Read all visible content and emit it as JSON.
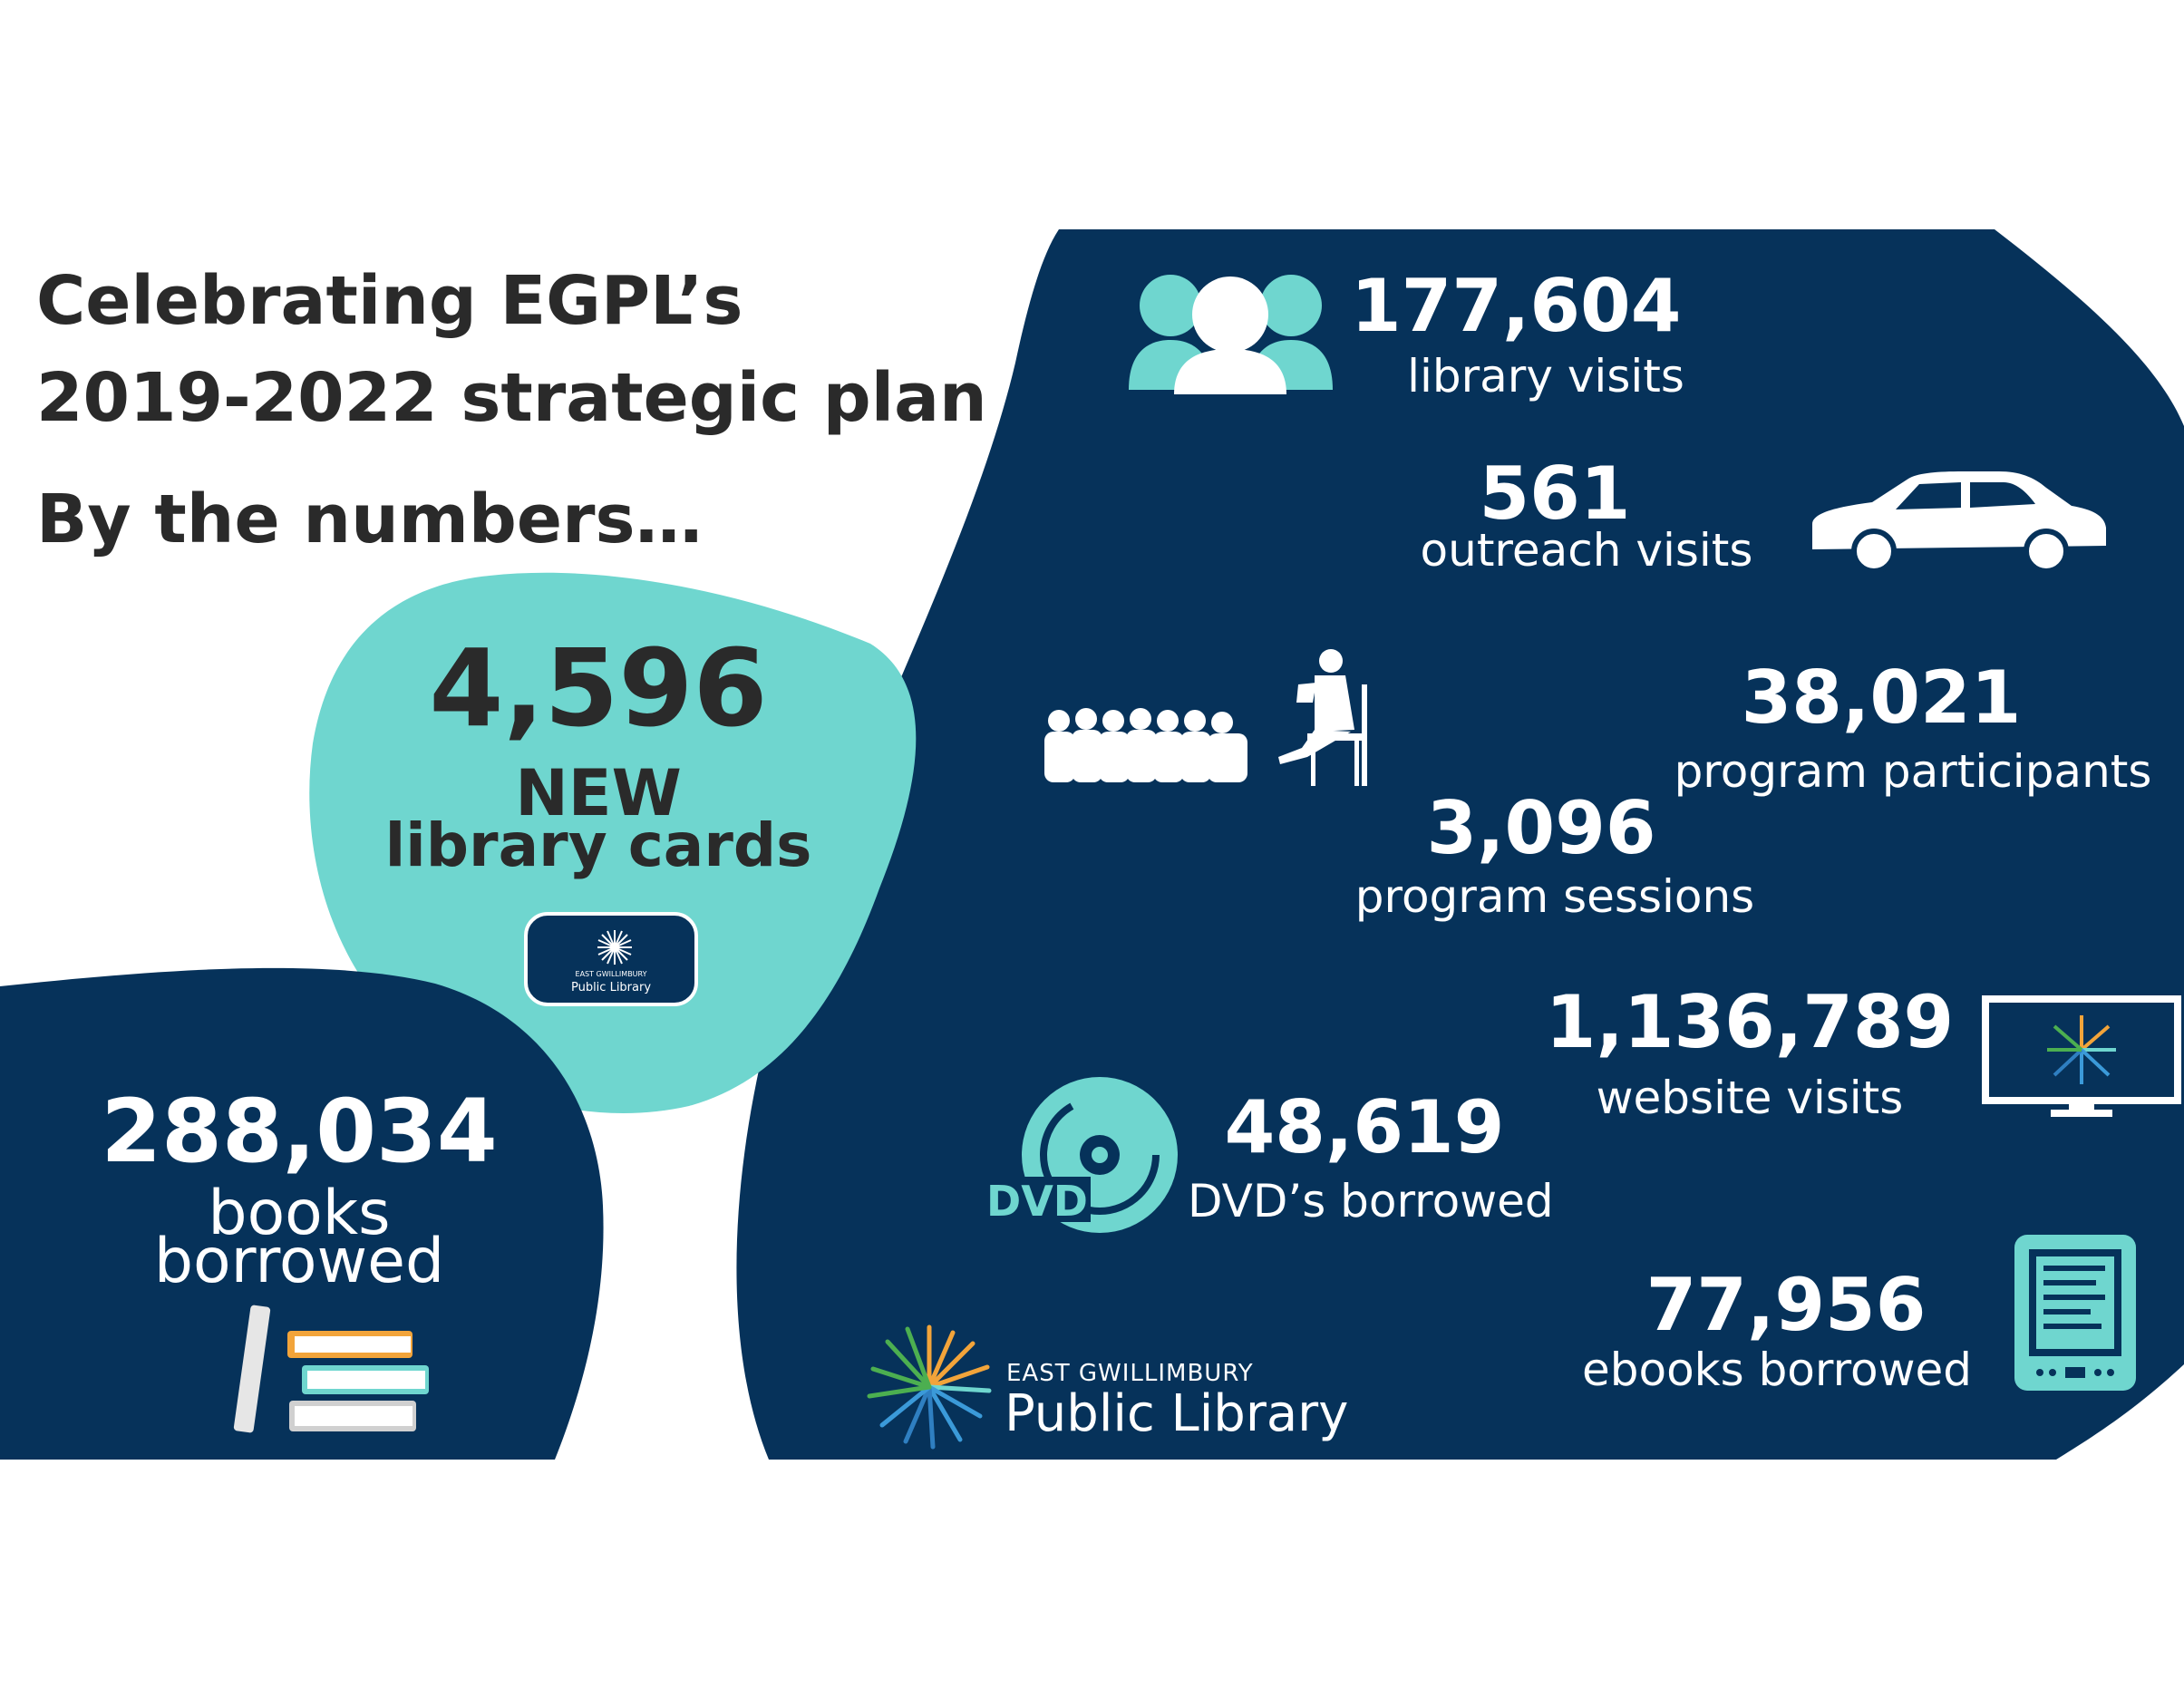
{
  "header": {
    "line1": "Celebrating EGPL’s",
    "line2": "2019-2022 strategic plan",
    "line3": "By the numbers…"
  },
  "colors": {
    "navy": "#06325a",
    "teal": "#6fd6cf",
    "white": "#ffffff",
    "text": "#2a2a2a"
  },
  "stats": {
    "library_cards": {
      "value": "4,596",
      "label1": "NEW",
      "label2": "library cards"
    },
    "books": {
      "value": "288,034",
      "label1": "books",
      "label2": "borrowed"
    },
    "library_visits": {
      "value": "177,604",
      "label": "library visits"
    },
    "outreach_visits": {
      "value": "561",
      "label": "outreach visits"
    },
    "program_participants": {
      "value": "38,021",
      "label": "program participants"
    },
    "program_sessions": {
      "value": "3,096",
      "label": "program sessions"
    },
    "website_visits": {
      "value": "1,136,789",
      "label": "website visits"
    },
    "dvds": {
      "value": "48,619",
      "label": "DVD’s borrowed",
      "icon_text": "DVD"
    },
    "ebooks": {
      "value": "77,956",
      "label": "ebooks borrowed"
    }
  },
  "card_logo": {
    "line1": "EAST GWILLIMBURY",
    "line2": "Public Library"
  },
  "logo": {
    "line1": "EAST GWILLIMBURY",
    "line2": "Public Library"
  },
  "icons": [
    "people-icon",
    "car-icon",
    "storytime-icon",
    "monitor-icon",
    "dvd-icon",
    "ereader-icon",
    "books-icon",
    "library-card-icon",
    "starburst-logo-icon"
  ]
}
